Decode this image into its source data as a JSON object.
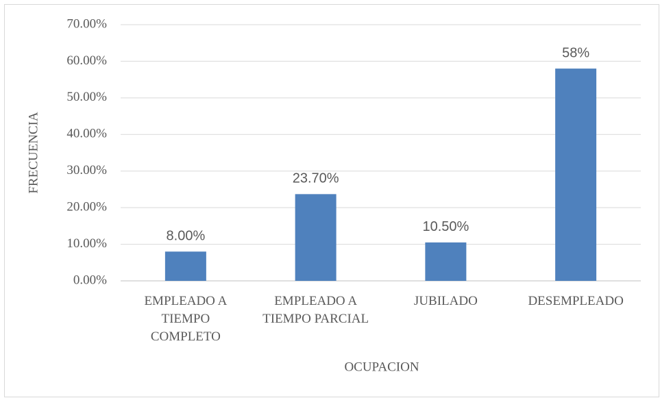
{
  "chart_data": {
    "type": "bar",
    "categories": [
      "EMPLEADO A\nTIEMPO\nCOMPLETO",
      "EMPLEADO A\nTIEMPO PARCIAL",
      "JUBILADO",
      "DESEMPLEADO"
    ],
    "values": [
      8,
      23.7,
      10.5,
      58
    ],
    "value_labels": [
      "8.00%",
      "23.70%",
      "10.50%",
      "58%"
    ],
    "color": "#4f81bd",
    "ylim": [
      0,
      70
    ],
    "yticks": [
      {
        "value": 0,
        "label": "0.00%"
      },
      {
        "value": 10,
        "label": "10.00%"
      },
      {
        "value": 20,
        "label": "20.00%"
      },
      {
        "value": 30,
        "label": "30.00%"
      },
      {
        "value": 40,
        "label": "40.00%"
      },
      {
        "value": 50,
        "label": "50.00%"
      },
      {
        "value": 60,
        "label": "60.00%"
      },
      {
        "value": 70,
        "label": "70.00%"
      }
    ],
    "grid": true,
    "xlabel": "OCUPACION",
    "ylabel": "FRECUENCIA"
  }
}
